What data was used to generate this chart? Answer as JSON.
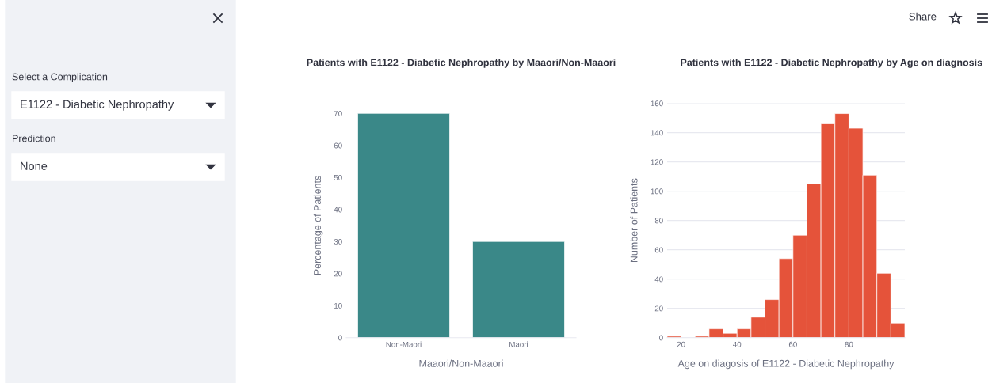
{
  "chart_data": [
    {
      "type": "other",
      "annotations": [
        "Select a Complication",
        "E1122 - Diabetic Nephropathy",
        "Prediction",
        "None",
        "Share"
      ]
    },
    {
      "type": "bar",
      "title": "Patients with E1122 - Diabetic Nephropathy by Maaori/Non-Maaori",
      "xlabel": "Maaori/Non-Maaori",
      "ylabel": "Percentage of Patients",
      "categories": [
        "Non-Maori",
        "Maori"
      ],
      "values": [
        70,
        30
      ],
      "color": "#3a8888",
      "ylim": [
        0,
        70
      ],
      "yticks": [
        0,
        10,
        20,
        30,
        40,
        50,
        60,
        70
      ],
      "grid": false
    },
    {
      "type": "histogram",
      "title": "Patients with E1122 - Diabetic Nephropathy by Age on diagnosis",
      "xlabel": "Age on diagosis of E1122 - Diabetic Nephropathy",
      "ylabel": "Number of Patients",
      "bins": [
        15,
        20,
        25,
        30,
        35,
        40,
        45,
        50,
        55,
        60,
        65,
        70,
        75,
        80,
        85,
        90,
        95,
        100
      ],
      "values": [
        1,
        0,
        1,
        6,
        3,
        6,
        14,
        26,
        54,
        70,
        105,
        146,
        153,
        143,
        111,
        44,
        10
      ],
      "color": "#e5533a",
      "xlim": [
        15,
        100
      ],
      "xticks": [
        20,
        40,
        60,
        80
      ],
      "ylim": [
        0,
        160
      ],
      "yticks": [
        0,
        20,
        40,
        60,
        80,
        100,
        120,
        140,
        160
      ],
      "grid": "y"
    }
  ]
}
